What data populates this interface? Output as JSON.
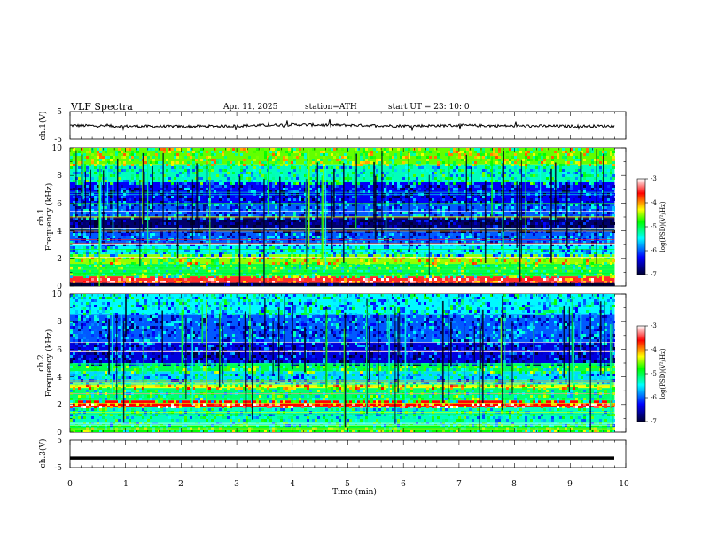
{
  "header": {
    "title": "VLF  Spectra",
    "date": "Apr. 11, 2025",
    "station": "station=ATH",
    "start": "start  UT  =   23: 10: 0"
  },
  "colors": {
    "trace": "#000000",
    "colormap": [
      "#000033",
      "#0000ff",
      "#00ffff",
      "#00ff00",
      "#ffff00",
      "#ff0000",
      "#ffffff"
    ]
  },
  "chart_data": [
    {
      "type": "line",
      "id": "ch1",
      "ylabel": "ch.1(V)",
      "ylim": [
        -5,
        5
      ],
      "y_ticklabels": [
        "5",
        "-5"
      ],
      "x": [
        0,
        1,
        2,
        3,
        4,
        5,
        6,
        7,
        8,
        9,
        9.8
      ],
      "values": [
        0.0,
        -0.3,
        -0.4,
        -0.2,
        0.3,
        0.1,
        -0.2,
        0.0,
        -0.2,
        -0.3,
        -0.2
      ]
    },
    {
      "type": "heatmap",
      "id": "ch1-spectrogram",
      "ylabel_lines": [
        "ch.1",
        "Frequency (kHz)"
      ],
      "ylim": [
        0,
        10
      ],
      "y_ticklabels": [
        "0",
        "2",
        "4",
        "6",
        "8",
        "10"
      ],
      "colorbar": {
        "label": "log(PSD)(V²/Hz)",
        "range": [
          -7,
          -3
        ],
        "ticklabels": [
          "-3",
          "-4",
          "-5",
          "-6",
          "-7"
        ]
      },
      "bands": [
        {
          "f_khz": [
            0.0,
            0.3
          ],
          "log_psd": -7.0
        },
        {
          "f_khz": [
            0.3,
            0.7
          ],
          "log_psd": -3.5
        },
        {
          "f_khz": [
            0.7,
            1.6
          ],
          "log_psd": -5.0
        },
        {
          "f_khz": [
            1.6,
            2.3
          ],
          "log_psd": -4.5
        },
        {
          "f_khz": [
            2.3,
            3.0
          ],
          "log_psd": -5.5
        },
        {
          "f_khz": [
            3.0,
            4.0
          ],
          "log_psd": -6.0
        },
        {
          "f_khz": [
            4.0,
            5.0
          ],
          "log_psd": -6.8
        },
        {
          "f_khz": [
            5.0,
            6.0
          ],
          "log_psd": -6.0
        },
        {
          "f_khz": [
            6.0,
            7.5
          ],
          "log_psd": -6.3
        },
        {
          "f_khz": [
            7.5,
            8.8
          ],
          "log_psd": -5.3
        },
        {
          "f_khz": [
            8.8,
            10.0
          ],
          "log_psd": -4.6
        }
      ]
    },
    {
      "type": "heatmap",
      "id": "ch2-spectrogram",
      "ylabel_lines": [
        "ch.2",
        "Frequency (kHz)"
      ],
      "ylim": [
        0,
        10
      ],
      "y_ticklabels": [
        "0",
        "2",
        "4",
        "6",
        "8",
        "10"
      ],
      "colorbar": {
        "label": "log(PSD)(V²/Hz)",
        "range": [
          -7,
          -3
        ],
        "ticklabels": [
          "-3",
          "-4",
          "-5",
          "-6",
          "-7"
        ]
      },
      "bands": [
        {
          "f_khz": [
            0.0,
            0.5
          ],
          "log_psd": -4.8
        },
        {
          "f_khz": [
            0.5,
            1.8
          ],
          "log_psd": -5.3
        },
        {
          "f_khz": [
            1.8,
            2.3
          ],
          "log_psd": -3.6
        },
        {
          "f_khz": [
            2.3,
            3.2
          ],
          "log_psd": -5.1
        },
        {
          "f_khz": [
            3.2,
            3.6
          ],
          "log_psd": -4.3
        },
        {
          "f_khz": [
            3.6,
            4.4
          ],
          "log_psd": -5.6
        },
        {
          "f_khz": [
            4.4,
            5.0
          ],
          "log_psd": -5.0
        },
        {
          "f_khz": [
            5.0,
            6.5
          ],
          "log_psd": -6.4
        },
        {
          "f_khz": [
            6.5,
            8.5
          ],
          "log_psd": -6.0
        },
        {
          "f_khz": [
            8.5,
            10.0
          ],
          "log_psd": -5.5
        }
      ]
    },
    {
      "type": "line",
      "id": "ch3",
      "ylabel": "ch.3(V)",
      "ylim": [
        -5,
        5
      ],
      "y_ticklabels": [
        "5",
        "-5"
      ],
      "x": [
        0,
        9.8
      ],
      "values": [
        -1.5,
        -1.5
      ]
    }
  ],
  "xaxis": {
    "label": "Time  (min)",
    "ticklabels": [
      "0",
      "1",
      "2",
      "3",
      "4",
      "5",
      "6",
      "7",
      "8",
      "9",
      "10"
    ],
    "range": [
      0,
      10
    ],
    "data_end": 9.8
  }
}
